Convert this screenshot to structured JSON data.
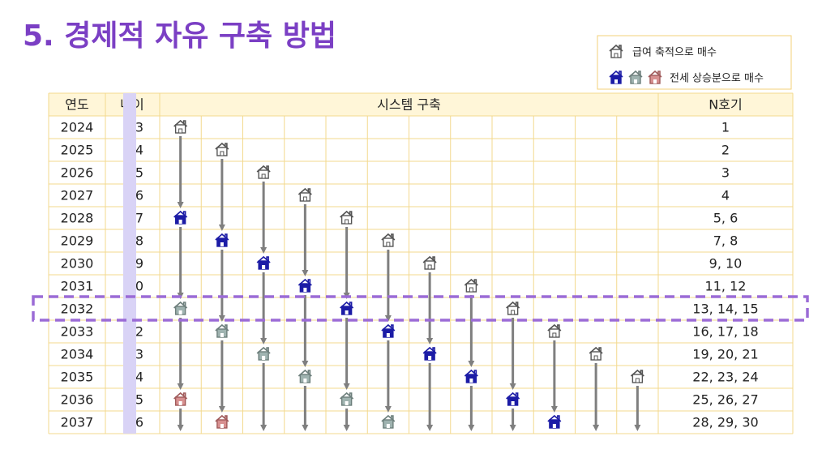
{
  "title": "5. 경제적 자유 구축 방법",
  "legend": {
    "items": [
      {
        "label": "급여 축적으로 매수"
      },
      {
        "label": "전세 상승분으로 매수"
      }
    ]
  },
  "table": {
    "header": [
      "연도",
      "나이",
      "시스템 구축",
      "N호기"
    ],
    "rows": [
      [
        "2024",
        "3",
        "1"
      ],
      [
        "2025",
        "4",
        "2"
      ],
      [
        "2026",
        "5",
        "3"
      ],
      [
        "2027",
        "6",
        "4"
      ],
      [
        "2028",
        "7",
        "5, 6"
      ],
      [
        "2029",
        "8",
        "7, 8"
      ],
      [
        "2030",
        "9",
        "9, 10"
      ],
      [
        "2031",
        "0",
        "11, 12"
      ],
      [
        "2032",
        null,
        "13, 14, 15"
      ],
      [
        "2033",
        "2",
        "16, 17, 18"
      ],
      [
        "2034",
        "3",
        "19, 20, 21"
      ],
      [
        "2035",
        "4",
        "22, 23, 24"
      ],
      [
        "2036",
        "5",
        "25, 26, 27"
      ],
      [
        "2037",
        "6",
        "28, 29, 30"
      ]
    ]
  }
}
